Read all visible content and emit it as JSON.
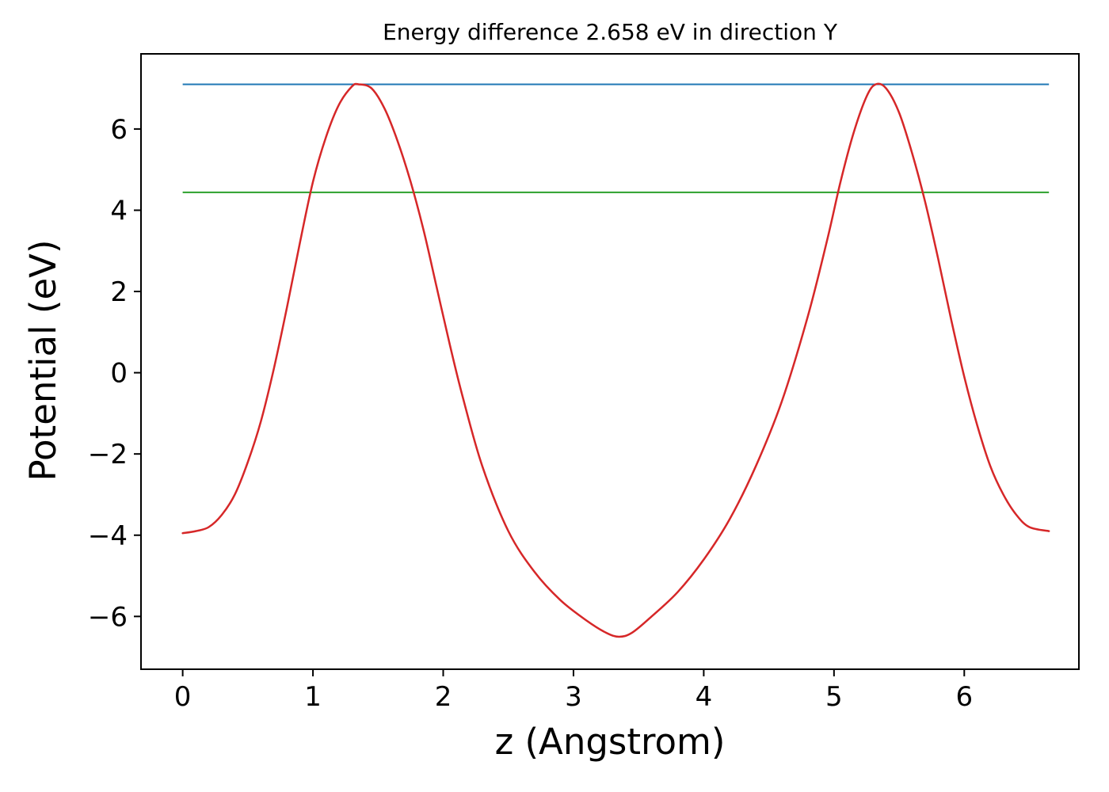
{
  "figure": {
    "background": "#ffffff"
  },
  "chart_data": {
    "type": "line",
    "title": "Energy difference 2.658 eV in direction Y",
    "xlabel": "z (Angstrom)",
    "ylabel": "Potential (eV)",
    "xlim": [
      -0.32,
      6.88
    ],
    "ylim": [
      -7.3,
      7.85
    ],
    "xticks": [
      0,
      1,
      2,
      3,
      4,
      5,
      6
    ],
    "xtick_labels": [
      "0",
      "1",
      "2",
      "3",
      "4",
      "5",
      "6"
    ],
    "yticks": [
      -6,
      -4,
      -2,
      0,
      2,
      4,
      6
    ],
    "ytick_labels": [
      "−6",
      "−4",
      "−2",
      "0",
      "2",
      "4",
      "6"
    ],
    "grid": false,
    "legend": null,
    "frame_color": "#000000",
    "series": [
      {
        "name": "potential-curve",
        "type": "line",
        "color": "#d62728",
        "width": 2.5,
        "x": [
          0,
          0.1,
          0.2,
          0.3,
          0.4,
          0.5,
          0.6,
          0.7,
          0.8,
          0.9,
          1.0,
          1.1,
          1.2,
          1.3,
          1.35,
          1.45,
          1.55,
          1.65,
          1.75,
          1.85,
          1.95,
          2.05,
          2.15,
          2.3,
          2.5,
          2.7,
          2.9,
          3.1,
          3.25,
          3.35,
          3.45,
          3.6,
          3.8,
          4.0,
          4.2,
          4.4,
          4.6,
          4.8,
          4.95,
          5.05,
          5.15,
          5.25,
          5.32,
          5.4,
          5.5,
          5.6,
          5.7,
          5.8,
          5.9,
          6.0,
          6.1,
          6.2,
          6.3,
          6.4,
          6.5,
          6.65
        ],
        "y": [
          -3.95,
          -3.9,
          -3.8,
          -3.5,
          -3.0,
          -2.2,
          -1.2,
          0.1,
          1.6,
          3.2,
          4.7,
          5.8,
          6.6,
          7.05,
          7.1,
          7.0,
          6.5,
          5.7,
          4.7,
          3.5,
          2.1,
          0.7,
          -0.6,
          -2.3,
          -3.9,
          -4.9,
          -5.6,
          -6.1,
          -6.4,
          -6.5,
          -6.4,
          -6.0,
          -5.4,
          -4.6,
          -3.6,
          -2.3,
          -0.7,
          1.4,
          3.3,
          4.7,
          5.9,
          6.8,
          7.1,
          7.0,
          6.4,
          5.4,
          4.2,
          2.8,
          1.3,
          -0.1,
          -1.3,
          -2.3,
          -3.0,
          -3.5,
          -3.8,
          -3.9
        ]
      },
      {
        "name": "peak-level-line",
        "type": "hline",
        "color": "#1f77b4",
        "width": 2,
        "y": 7.1,
        "x_start": 0.0,
        "x_end": 6.65
      },
      {
        "name": "reference-level-line",
        "type": "hline",
        "color": "#2ca02c",
        "width": 2,
        "y": 4.44,
        "x_start": 0.0,
        "x_end": 6.65
      }
    ]
  }
}
